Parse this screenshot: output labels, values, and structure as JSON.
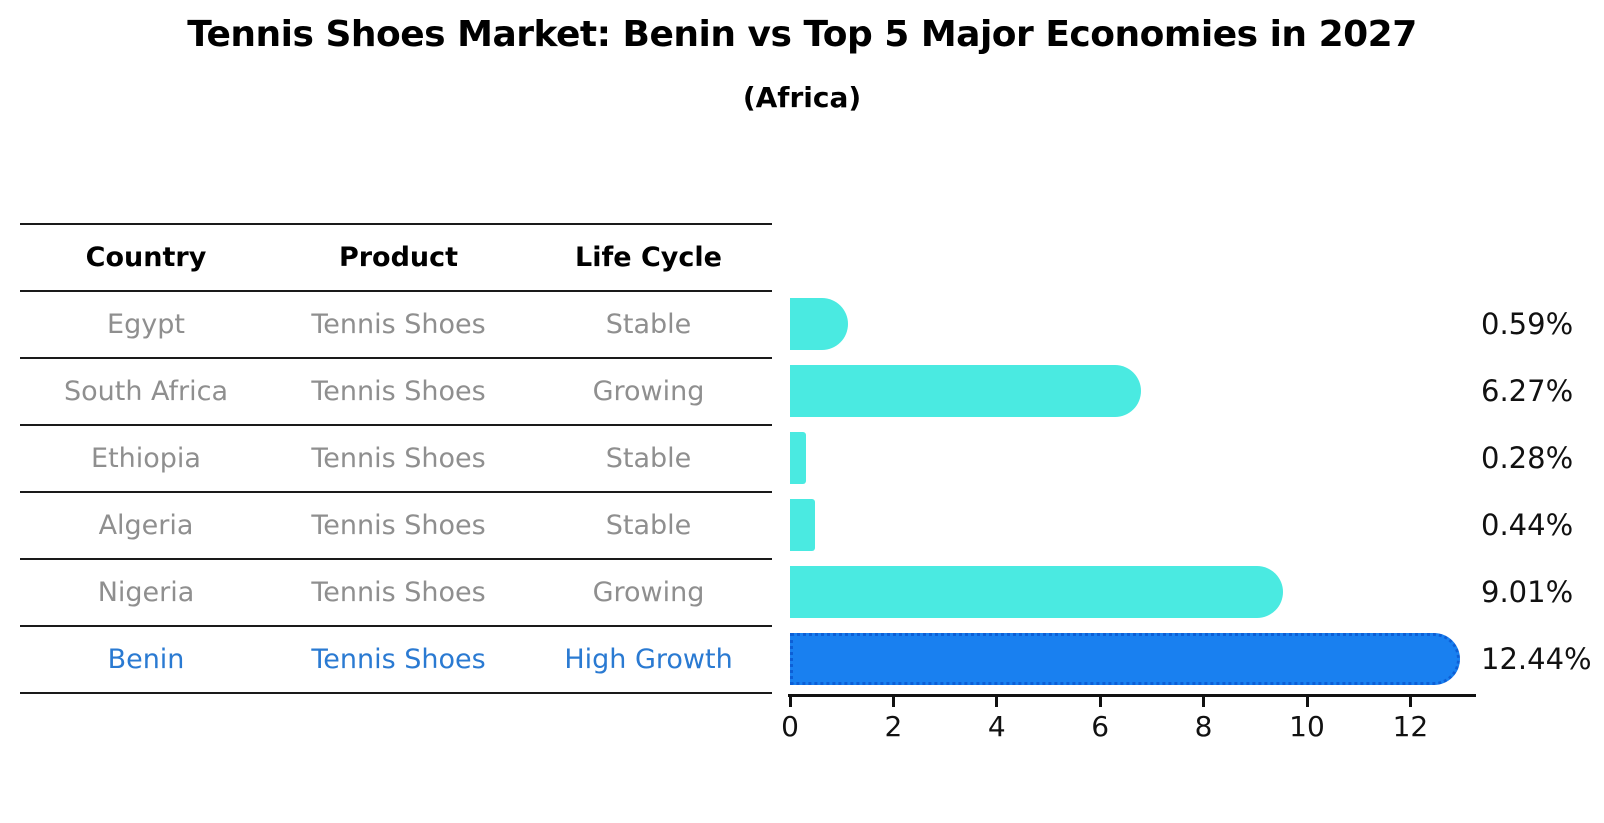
{
  "title": "Tennis Shoes Market: Benin vs Top 5 Major Economies in 2027",
  "subtitle": "(Africa)",
  "table": {
    "headers": [
      "Country",
      "Product",
      "Life Cycle"
    ],
    "rows": [
      {
        "country": "Egypt",
        "product": "Tennis Shoes",
        "life_cycle": "Stable",
        "highlight": false
      },
      {
        "country": "South Africa",
        "product": "Tennis Shoes",
        "life_cycle": "Growing",
        "highlight": false
      },
      {
        "country": "Ethiopia",
        "product": "Tennis Shoes",
        "life_cycle": "Stable",
        "highlight": false
      },
      {
        "country": "Algeria",
        "product": "Tennis Shoes",
        "life_cycle": "Stable",
        "highlight": false
      },
      {
        "country": "Nigeria",
        "product": "Tennis Shoes",
        "life_cycle": "Growing",
        "highlight": false
      },
      {
        "country": "Benin",
        "product": "Tennis Shoes",
        "life_cycle": "High Growth",
        "highlight": true
      }
    ]
  },
  "chart_data": {
    "type": "bar",
    "orientation": "horizontal",
    "title": "Tennis Shoes Market: Benin vs Top 5 Major Economies in 2027",
    "subtitle": "(Africa)",
    "categories": [
      "Egypt",
      "South Africa",
      "Ethiopia",
      "Algeria",
      "Nigeria",
      "Benin"
    ],
    "values": [
      0.59,
      6.27,
      0.28,
      0.44,
      9.01,
      12.44
    ],
    "value_labels": [
      "0.59%",
      "6.27%",
      "0.28%",
      "0.44%",
      "9.01%",
      "12.44%"
    ],
    "x_ticks": [
      "0",
      "2",
      "4",
      "6",
      "8",
      "10",
      "12"
    ],
    "x_tick_values": [
      0,
      2,
      4,
      6,
      8,
      10,
      12
    ],
    "xlim": [
      0,
      13.2
    ],
    "grid": false,
    "legend": false,
    "highlight_index": 5
  },
  "colors": {
    "bar": "#4AEAE1",
    "highlight_bar": "#1980F0",
    "highlight_bar_border": "#0D5FD6",
    "highlight_text": "#2a7ad2",
    "muted_text": "#8f8f8f",
    "text": "#111111"
  }
}
